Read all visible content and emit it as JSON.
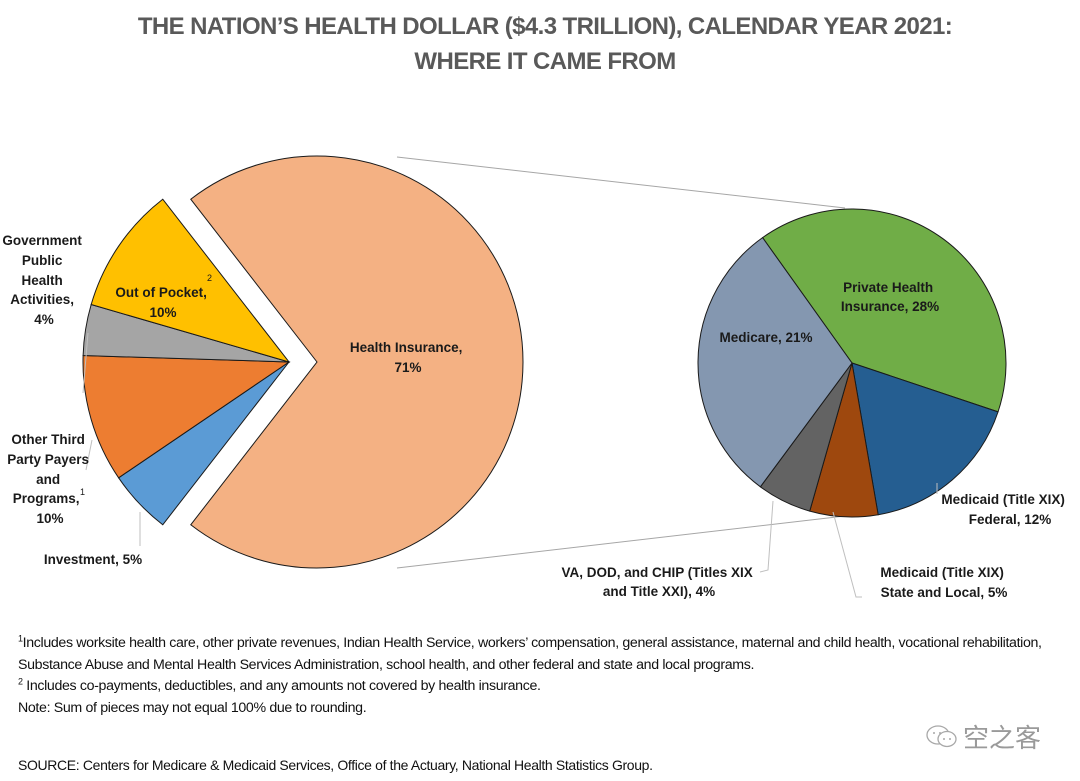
{
  "chart_data": [
    {
      "type": "pie",
      "title": "THE NATION’S HEALTH DOLLAR ($4.3 TRILLION), CALENDAR YEAR 2021:",
      "subtitle": "WHERE IT CAME FROM",
      "slices": [
        {
          "id": "health-insurance",
          "label": "Health Insurance,",
          "pct_text": "71%",
          "value": 71,
          "color": "#F4B183",
          "exploded_to_detail": true
        },
        {
          "id": "out-of-pocket",
          "label": "Out of Pocket,",
          "pct_text": "10%",
          "value": 10,
          "color": "#FFC000",
          "footnote": "2"
        },
        {
          "id": "gov-public-health",
          "label": "Government Public Health Activities,",
          "label_lines": [
            "Government",
            "Public",
            "Health",
            "Activities,",
            "4%"
          ],
          "pct_text": "4%",
          "value": 4,
          "color": "#A5A5A5"
        },
        {
          "id": "other-third-party",
          "label": "Other Third Party Payers and Programs,",
          "label_lines": [
            "Other Third",
            "Party Payers",
            "and",
            "Programs,",
            "10%"
          ],
          "pct_text": "10%",
          "value": 10,
          "color": "#ED7D31",
          "footnote": "1"
        },
        {
          "id": "investment",
          "label": "Investment,",
          "pct_text": "5%",
          "value": 5,
          "color": "#5B9BD5"
        }
      ]
    },
    {
      "type": "pie",
      "title": "Health Insurance breakdown",
      "slices": [
        {
          "id": "private-health-insurance",
          "label_lines": [
            "Private Health",
            "Insurance, 28%"
          ],
          "value": 28,
          "color": "#70AD47"
        },
        {
          "id": "medicaid-federal",
          "label_lines": [
            "Medicaid (Title XIX)",
            "Federal, 12%"
          ],
          "value": 12,
          "color": "#255E91"
        },
        {
          "id": "medicaid-state-local",
          "label_lines": [
            "Medicaid (Title XIX)",
            "State and Local, 5%"
          ],
          "value": 5,
          "color": "#9E480E"
        },
        {
          "id": "va-dod-chip",
          "label_lines": [
            "VA, DOD, and CHIP (Titles XIX",
            "and Title XXI), 4%"
          ],
          "value": 4,
          "color": "#636363"
        },
        {
          "id": "medicare",
          "label_lines": [
            "Medicare, 21%"
          ],
          "value": 21,
          "color": "#8497B0"
        }
      ]
    }
  ],
  "header": {
    "title_line1": "THE NATION’S HEALTH DOLLAR ($4.3 TRILLION), CALENDAR YEAR 2021:",
    "title_line2": "WHERE IT CAME FROM"
  },
  "main_labels": {
    "health_insurance": [
      "Health Insurance,",
      "71%"
    ],
    "out_of_pocket": [
      "Out of Pocket,",
      "10%"
    ],
    "out_of_pocket_sup": "2",
    "gov_public_health": [
      "Government",
      "Public",
      "Health",
      "Activities,",
      "4%"
    ],
    "other_third_party": [
      "Other Third",
      "Party Payers",
      "and",
      "Programs,",
      "10%"
    ],
    "other_third_party_sup": "1",
    "investment": "Investment, 5%"
  },
  "detail_labels": {
    "private_health_insurance": [
      "Private Health",
      "Insurance, 28%"
    ],
    "medicare": "Medicare, 21%",
    "medicaid_federal": [
      "Medicaid (Title XIX)",
      "Federal, 12%"
    ],
    "medicaid_state": [
      "Medicaid (Title XIX)",
      "State and Local, 5%"
    ],
    "va_dod_chip": [
      "VA, DOD, and CHIP (Titles XIX",
      "and Title XXI), 4%"
    ]
  },
  "footnotes": {
    "fn1_mark": "1",
    "fn1_text": "Includes worksite health care, other private revenues, Indian Health Service, workers’ compensation, general assistance, maternal and child health, vocational rehabilitation, Substance Abuse and Mental Health Services Administration, school health, and other federal and state and local programs.",
    "fn2_mark": "2",
    "fn2_text": " Includes co-payments, deductibles, and any amounts not covered by health insurance.",
    "note": "Note: Sum of pieces may not equal 100% due to rounding.",
    "source": "SOURCE: Centers for Medicare & Medicaid Services, Office of the Actuary, National Health Statistics Group."
  },
  "watermark": {
    "text": "空之客",
    "icon": "chat-bubble-icon"
  }
}
